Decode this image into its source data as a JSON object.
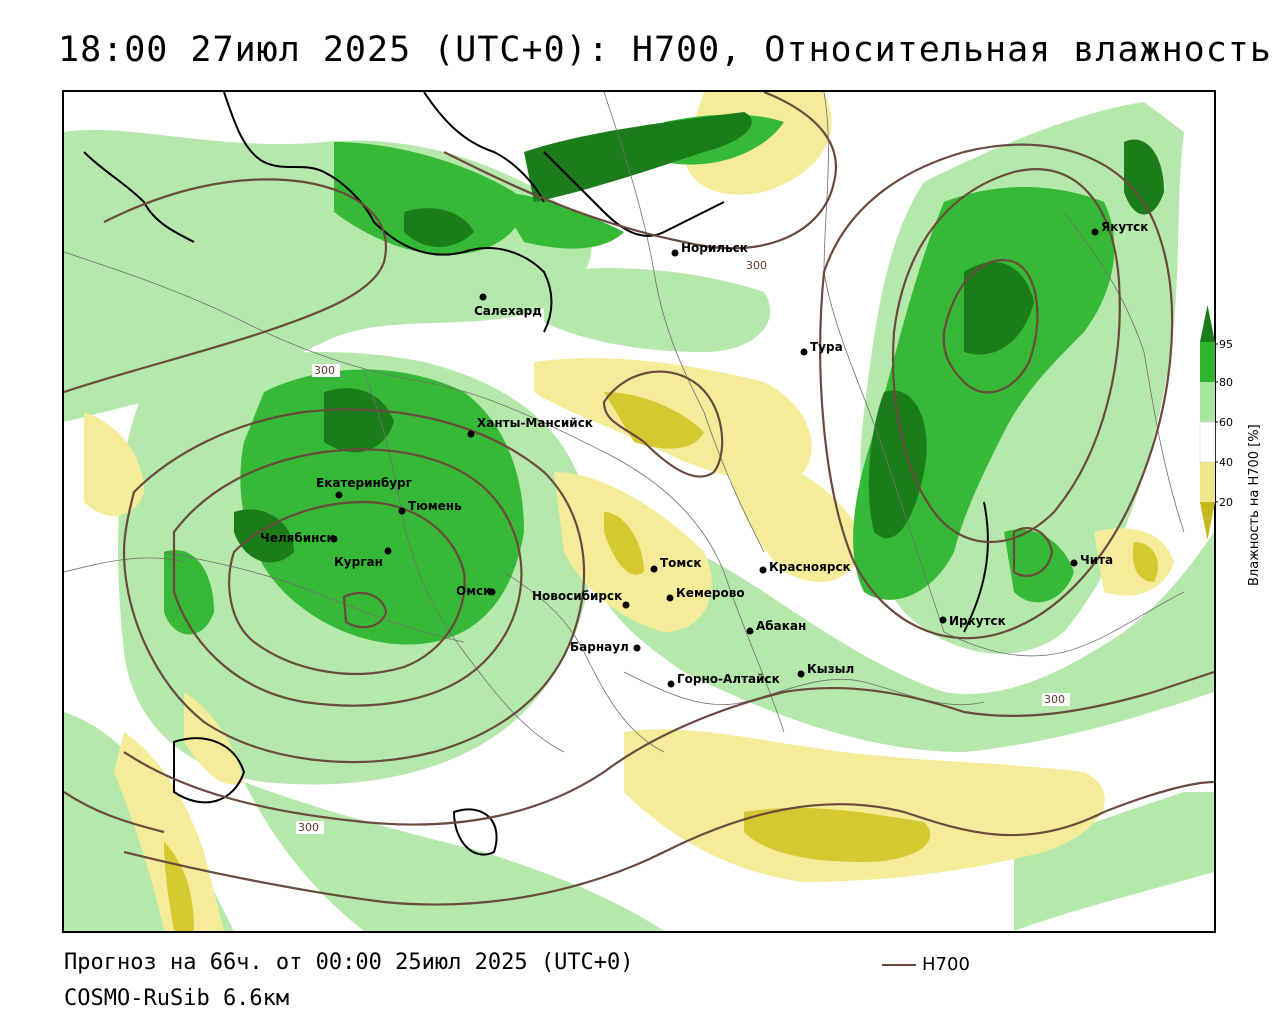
{
  "title": "18:00 27июл 2025 (UTC+0): H700, Относительная влажность",
  "footer": {
    "forecast": "Прогноз на 66ч. от 00:00 25июл 2025 (UTC+0)",
    "model": "COSMO-RuSib 6.6км",
    "line_legend": "H700"
  },
  "legend": {
    "title": "Влажность на H700 [%]",
    "ticks": [
      "95",
      "80",
      "60",
      "40",
      "20"
    ],
    "colors": {
      "c95": "#1a7d1a",
      "c80": "#2db52d",
      "c60": "#a8e6a0",
      "c40": "#ffffff",
      "c20": "#f0e68c",
      "c0": "#c8b820"
    }
  },
  "map": {
    "cities": [
      {
        "name": "Норильск"
      },
      {
        "name": "Якутск"
      },
      {
        "name": "Салехард"
      },
      {
        "name": "Тура"
      },
      {
        "name": "Ханты-Мансийск"
      },
      {
        "name": "Екатеринбург"
      },
      {
        "name": "Тюмень"
      },
      {
        "name": "Челябинск"
      },
      {
        "name": "Курган"
      },
      {
        "name": "Омск"
      },
      {
        "name": "Новосибирск"
      },
      {
        "name": "Томск"
      },
      {
        "name": "Кемерово"
      },
      {
        "name": "Красноярск"
      },
      {
        "name": "Барнаул"
      },
      {
        "name": "Абакан"
      },
      {
        "name": "Горно-Алтайск"
      },
      {
        "name": "Кызыл"
      },
      {
        "name": "Иркутск"
      },
      {
        "name": "Чита"
      }
    ],
    "isoline_labels": [
      "300",
      "300",
      "300",
      "300"
    ],
    "colors": {
      "contour": "#6b4a3e",
      "coast": "#000000",
      "border": "#6f6f6f"
    }
  }
}
